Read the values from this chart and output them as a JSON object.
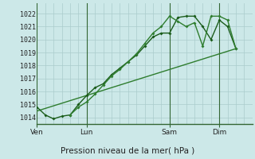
{
  "bg_color": "#cce8e8",
  "grid_color_minor": "#aacccc",
  "grid_color_major": "#336633",
  "line_color1": "#1a5c1a",
  "line_color2": "#2e7d2e",
  "line_color3": "#2e7d2e",
  "title": "Pression niveau de la mer( hPa )",
  "ylabel_ticks": [
    1014,
    1015,
    1016,
    1017,
    1018,
    1019,
    1020,
    1021,
    1022
  ],
  "ylim": [
    1013.5,
    1022.8
  ],
  "day_labels": [
    "Ven",
    "Lun",
    "Sam",
    "Dim"
  ],
  "day_positions": [
    0,
    18,
    48,
    66
  ],
  "series1_x": [
    0,
    3,
    6,
    9,
    12,
    15,
    18,
    21,
    24,
    27,
    30,
    33,
    36,
    39,
    42,
    45,
    48,
    51,
    54,
    57,
    60,
    63,
    66,
    69,
    72
  ],
  "series1_y": [
    1014.8,
    1014.2,
    1013.9,
    1014.1,
    1014.2,
    1015.0,
    1015.7,
    1016.3,
    1016.6,
    1017.3,
    1017.8,
    1018.3,
    1018.8,
    1019.5,
    1020.2,
    1020.5,
    1020.5,
    1021.7,
    1021.8,
    1021.8,
    1021.0,
    1020.0,
    1021.5,
    1021.0,
    1019.3
  ],
  "series2_x": [
    12,
    15,
    18,
    21,
    24,
    27,
    30,
    33,
    36,
    39,
    42,
    45,
    48,
    51,
    54,
    57,
    60,
    63,
    66,
    69,
    72
  ],
  "series2_y": [
    1014.2,
    1014.8,
    1015.2,
    1015.8,
    1016.5,
    1017.2,
    1017.7,
    1018.3,
    1018.9,
    1019.7,
    1020.5,
    1021.0,
    1021.8,
    1021.4,
    1021.0,
    1021.3,
    1019.5,
    1021.8,
    1021.8,
    1021.5,
    1019.3
  ],
  "series3_x": [
    0,
    72
  ],
  "series3_y": [
    1014.5,
    1019.3
  ],
  "major_vlines": [
    0,
    18,
    48,
    66
  ],
  "xlim": [
    0,
    78
  ]
}
